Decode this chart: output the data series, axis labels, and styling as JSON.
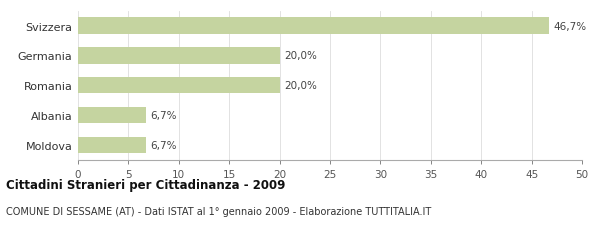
{
  "categories": [
    "Moldova",
    "Albania",
    "Romania",
    "Germania",
    "Svizzera"
  ],
  "values": [
    6.7,
    6.7,
    20.0,
    20.0,
    46.7
  ],
  "labels": [
    "6,7%",
    "6,7%",
    "20,0%",
    "20,0%",
    "46,7%"
  ],
  "bar_color": "#c5d4a0",
  "xlim": [
    0,
    50
  ],
  "xticks": [
    0,
    5,
    10,
    15,
    20,
    25,
    30,
    35,
    40,
    45,
    50
  ],
  "title_bold": "Cittadini Stranieri per Cittadinanza - 2009",
  "subtitle": "COMUNE DI SESSAME (AT) - Dati ISTAT al 1° gennaio 2009 - Elaborazione TUTTITALIA.IT",
  "title_fontsize": 8.5,
  "subtitle_fontsize": 7,
  "label_fontsize": 7.5,
  "tick_fontsize": 7.5,
  "ytick_fontsize": 8
}
